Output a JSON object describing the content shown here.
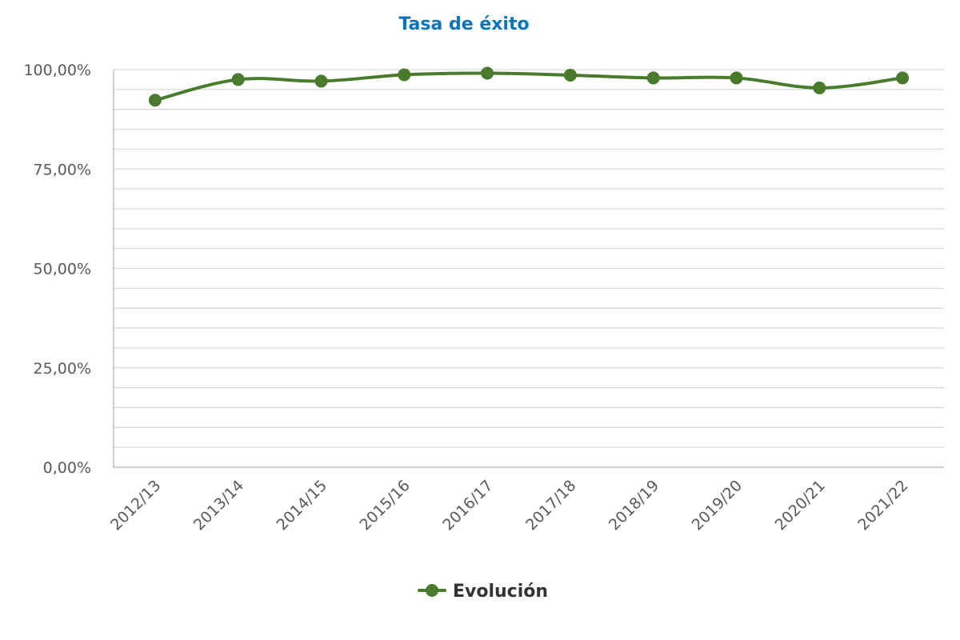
{
  "chart_data": {
    "type": "line",
    "title": "Tasa de éxito",
    "xlabel": "",
    "ylabel": "",
    "categories": [
      "2012/13",
      "2013/14",
      "2014/15",
      "2015/16",
      "2016/17",
      "2017/18",
      "2018/19",
      "2019/20",
      "2020/21",
      "2021/22"
    ],
    "series": [
      {
        "name": "Evolución",
        "values": [
          92.3,
          97.5,
          97.1,
          98.7,
          99.1,
          98.6,
          97.9,
          97.9,
          95.4,
          97.9
        ],
        "color": "#4a7a2c"
      }
    ],
    "ylim": [
      0,
      100
    ],
    "yticks": [
      0,
      25,
      50,
      75,
      100
    ],
    "ytick_labels": [
      "0,00%",
      "25,00%",
      "50,00%",
      "75,00%",
      "100,00%"
    ],
    "minor_grid_step": 5,
    "grid": true,
    "smooth": true,
    "markers": true,
    "legend": "bottom-center",
    "colors": {
      "title": "#0a74b9",
      "grid": "#d9d9d9",
      "axis": "#bfbfbf",
      "tick_text": "#595959",
      "legend_text": "#333333"
    }
  }
}
